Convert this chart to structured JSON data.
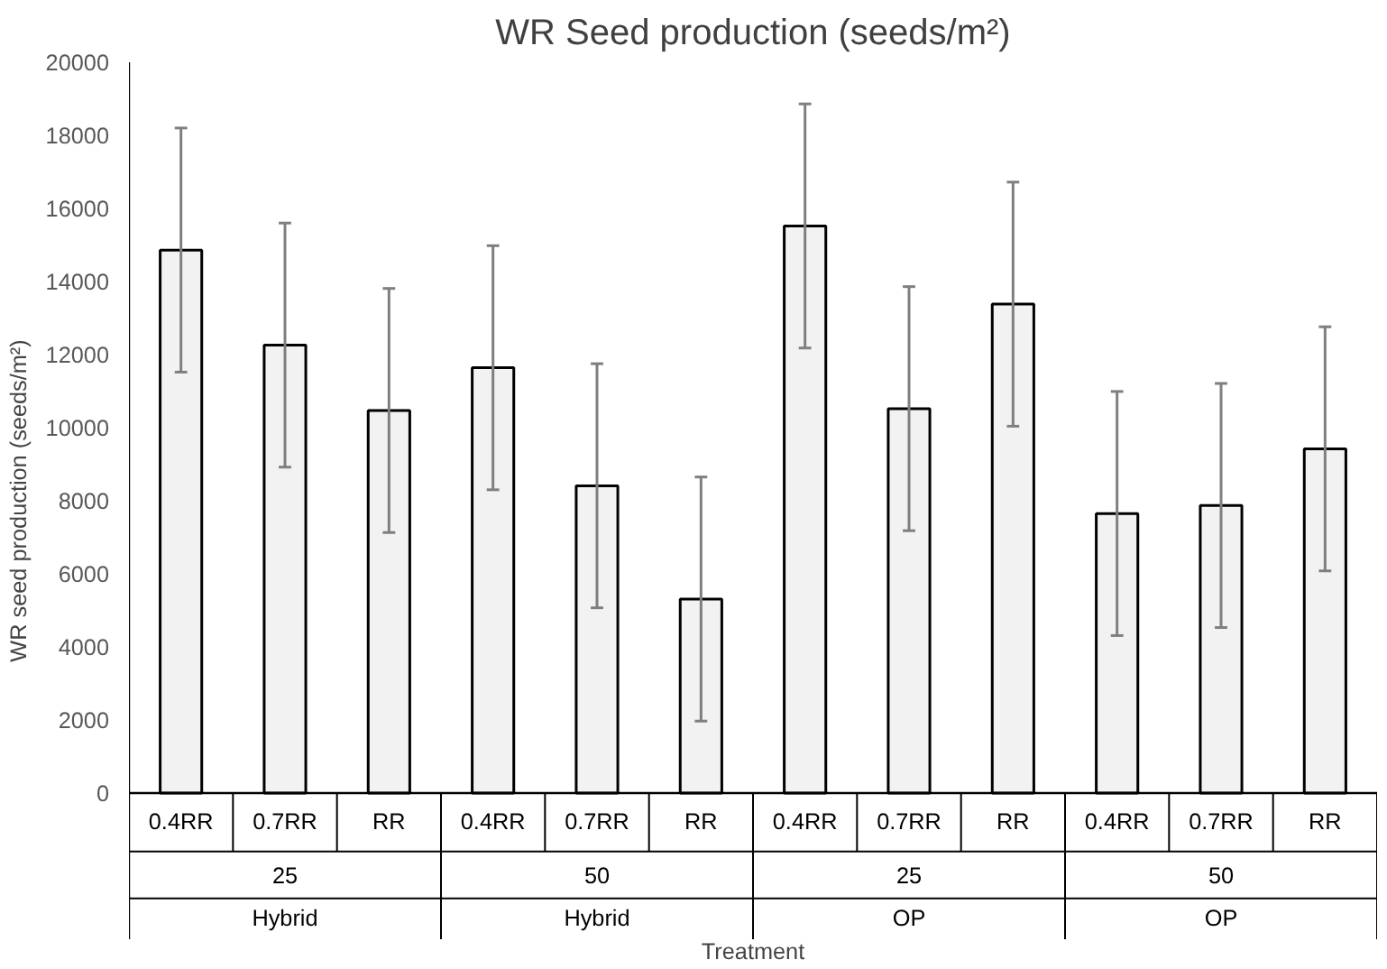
{
  "chart_data": {
    "type": "bar",
    "title": "WR Seed production (seeds/m²)",
    "ylabel": "WR seed production (seeds/m²)",
    "xlabel": "Treatment",
    "categories": [
      "0.4RR",
      "0.7RR",
      "RR",
      "0.4RR",
      "0.7RR",
      "RR",
      "0.4RR",
      "0.7RR",
      "RR",
      "0.4RR",
      "0.7RR",
      "RR"
    ],
    "values": [
      14860,
      12260,
      10470,
      11640,
      8410,
      5310,
      15520,
      10520,
      13380,
      7650,
      7870,
      9420
    ],
    "errors": [
      3340,
      3340,
      3340,
      3340,
      3340,
      3340,
      3340,
      3340,
      3340,
      3340,
      3340,
      3340
    ],
    "color": "#f2f2f2",
    "annotations": [
      "25",
      "Hybrid",
      "50",
      "Hybrid",
      "25",
      "OP",
      "50",
      "OP"
    ],
    "ylim": [
      0,
      20000
    ],
    "yticks": [
      0,
      2000,
      4000,
      6000,
      8000,
      10000,
      12000,
      14000,
      16000,
      18000,
      20000
    ],
    "grid": false
  }
}
